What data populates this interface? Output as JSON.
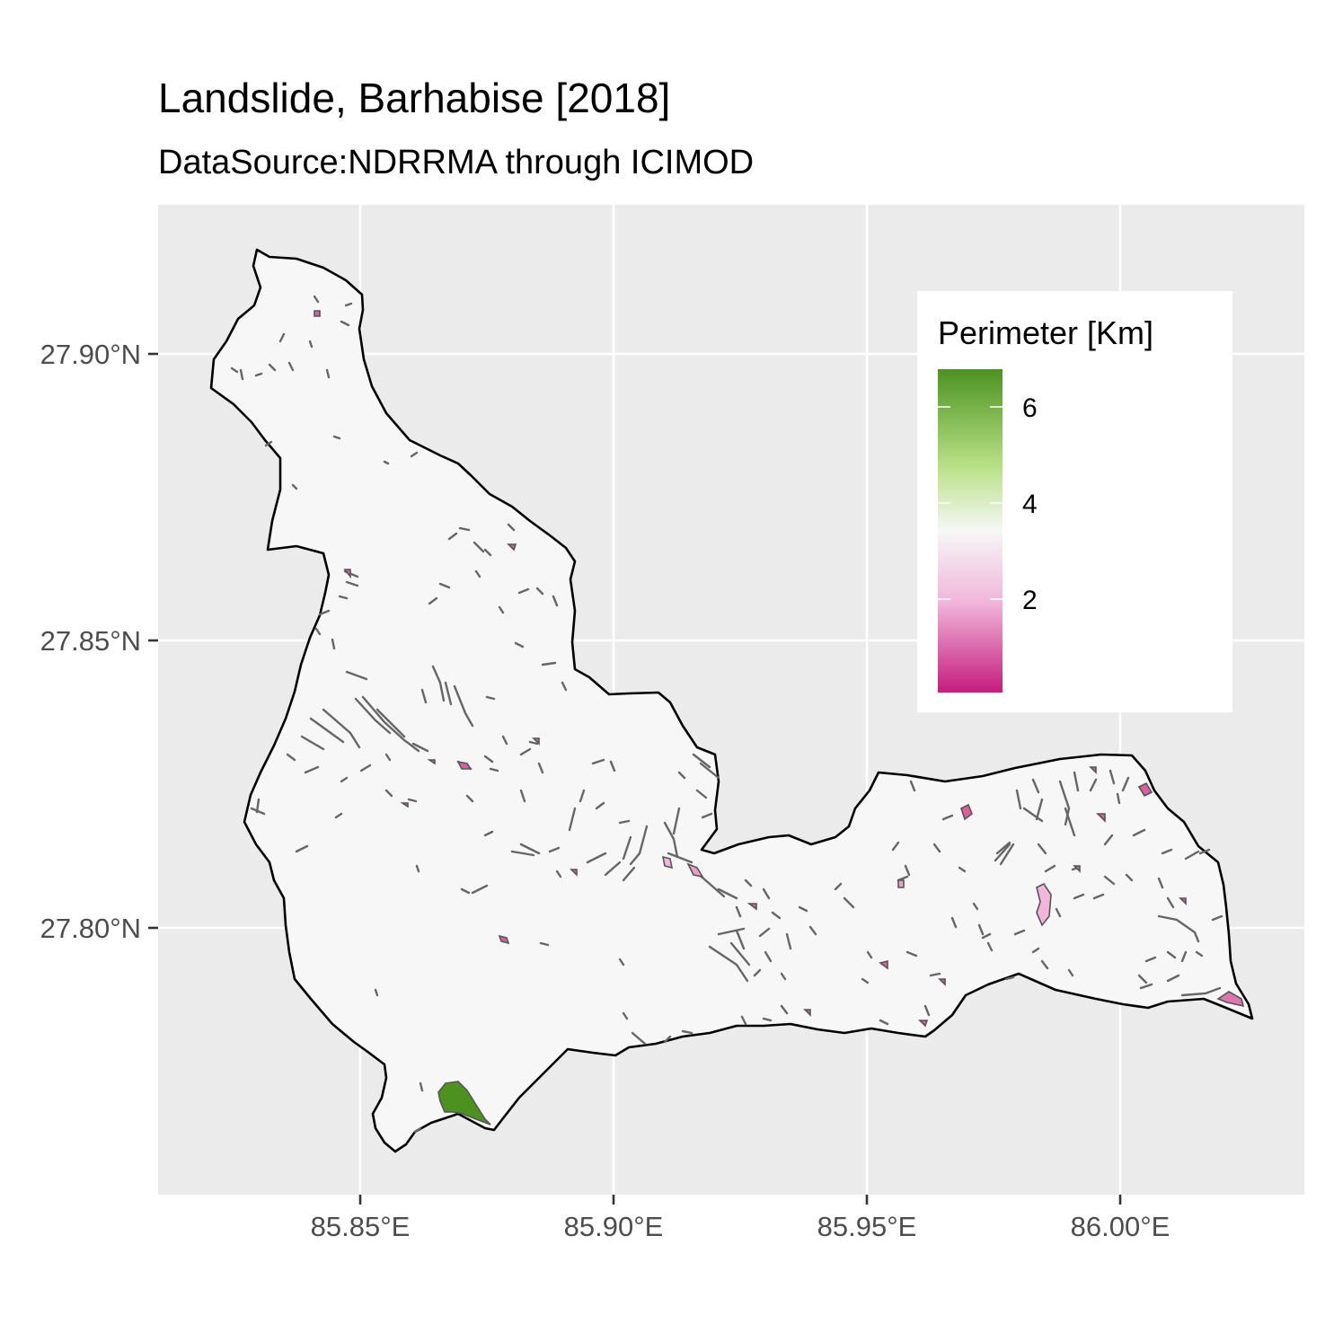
{
  "title": "Landslide, Barhabise [2018]",
  "subtitle": "DataSource:NDRRMA through ICIMOD",
  "axes": {
    "x_ticks": [
      "85.85°E",
      "85.90°E",
      "85.95°E",
      "86.00°E"
    ],
    "y_ticks": [
      "27.90°N",
      "27.85°N",
      "27.80°N"
    ]
  },
  "legend": {
    "title": "Perimeter [Km]",
    "labels": [
      "6",
      "4",
      "2"
    ],
    "colors": [
      "#4d9221",
      "#b8e186",
      "#f7f7f7",
      "#f1b6da",
      "#c51b7d"
    ]
  },
  "chart_data": {
    "type": "map",
    "title": "Landslide, Barhabise [2018]",
    "subtitle": "DataSource:NDRRMA through ICIMOD",
    "fill_variable": "Perimeter [Km]",
    "x_ticks": [
      85.85,
      85.9,
      85.95,
      86.0
    ],
    "y_ticks": [
      27.9,
      27.85,
      27.8
    ],
    "colorbar_ticks": [
      2,
      4,
      6
    ],
    "colorbar_range": [
      0.1,
      6.8
    ],
    "grid": true,
    "background": "#ebebeb",
    "legend_position": "top-right",
    "boundary_color": "#000000",
    "polygon_outline_color": "#555555"
  }
}
